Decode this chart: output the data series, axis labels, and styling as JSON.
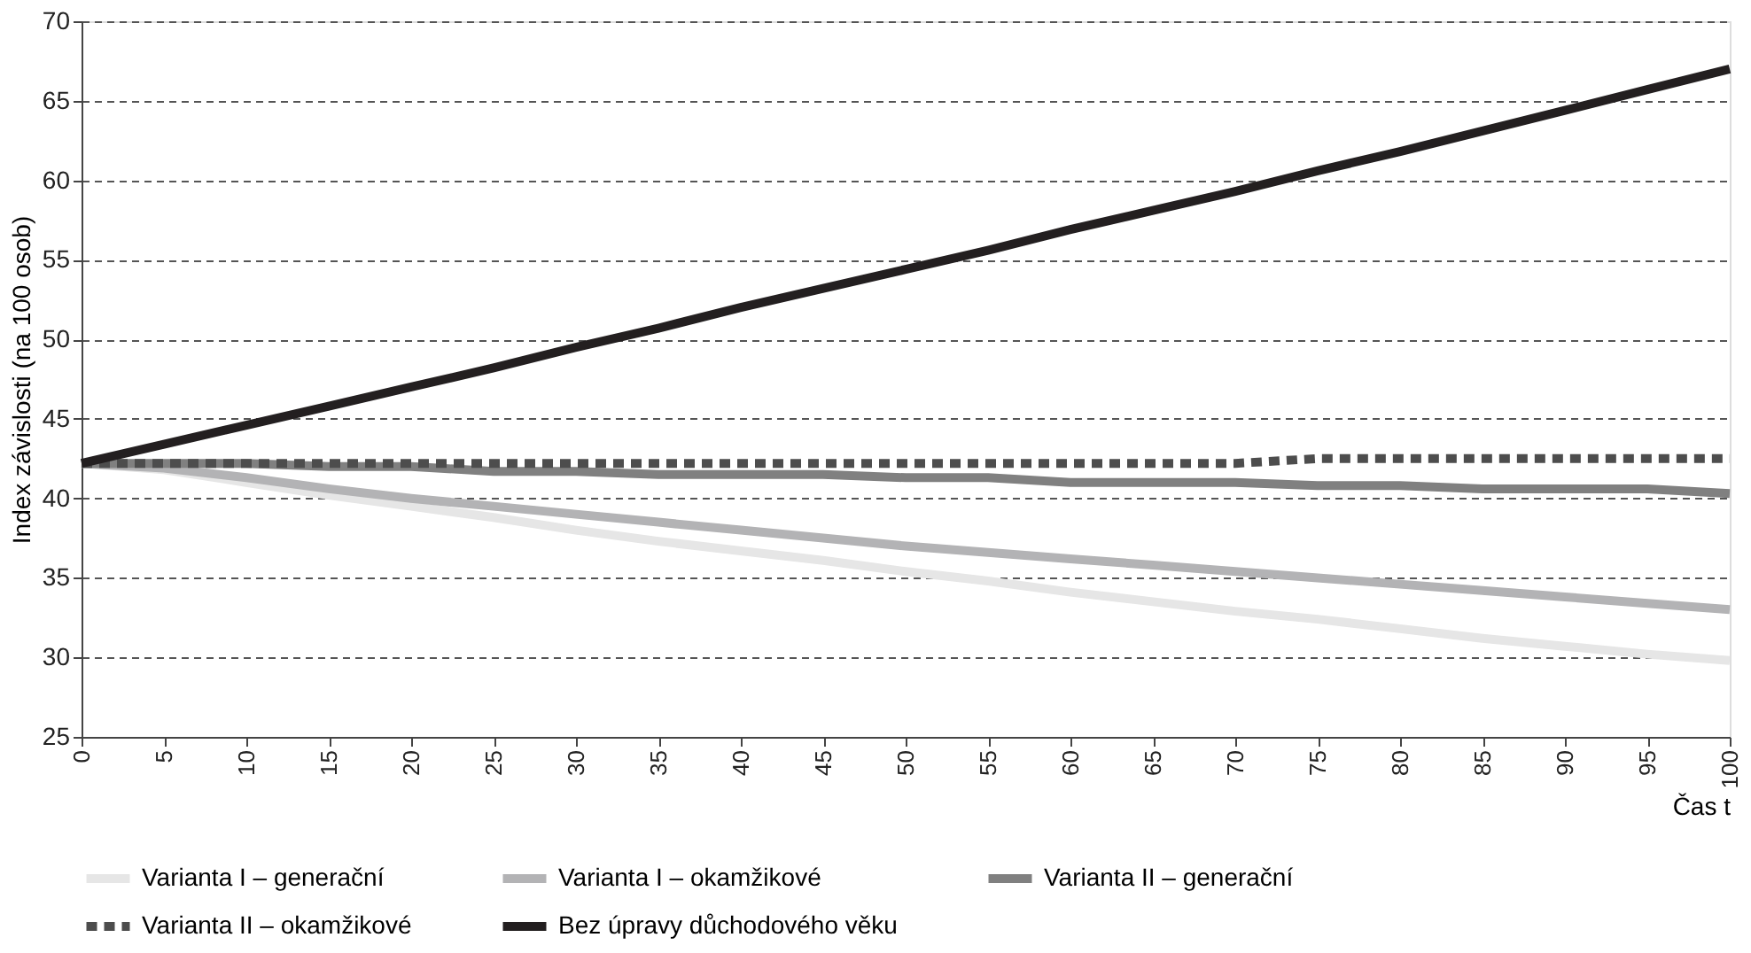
{
  "chart_data": {
    "type": "line",
    "xlabel": "Čas t",
    "ylabel": "Index závislosti (na 100 osob)",
    "x": [
      0,
      5,
      10,
      15,
      20,
      25,
      30,
      35,
      40,
      45,
      50,
      55,
      60,
      65,
      70,
      75,
      80,
      85,
      90,
      95,
      100
    ],
    "xlim": [
      0,
      100
    ],
    "xticks": [
      0,
      5,
      10,
      15,
      20,
      25,
      30,
      35,
      40,
      45,
      50,
      55,
      60,
      65,
      70,
      75,
      80,
      85,
      90,
      95,
      100
    ],
    "ylim": [
      25,
      70
    ],
    "yticks": [
      25,
      30,
      35,
      40,
      45,
      50,
      55,
      60,
      65,
      70
    ],
    "grid": "y",
    "legend": "bottom",
    "line_style": "solid",
    "series": [
      {
        "name": "Varianta I – generační",
        "color": "#e6e6e6",
        "values": [
          42.2,
          41.8,
          41.0,
          40.2,
          39.5,
          38.8,
          38.0,
          37.3,
          36.7,
          36.1,
          35.4,
          34.8,
          34.1,
          33.5,
          32.9,
          32.4,
          31.8,
          31.2,
          30.7,
          30.2,
          29.8
        ]
      },
      {
        "name": "Varianta I – okamžikové",
        "color": "#b3b3b5",
        "values": [
          42.2,
          41.9,
          41.3,
          40.6,
          40.0,
          39.5,
          39.0,
          38.5,
          38.0,
          37.5,
          37.0,
          36.6,
          36.2,
          35.8,
          35.4,
          35.0,
          34.6,
          34.2,
          33.8,
          33.4,
          33.0
        ]
      },
      {
        "name": "Varianta II – generační",
        "color": "#808080",
        "values": [
          42.2,
          42.2,
          42.2,
          42.0,
          42.0,
          41.7,
          41.7,
          41.5,
          41.5,
          41.5,
          41.3,
          41.3,
          41.0,
          41.0,
          41.0,
          40.8,
          40.8,
          40.6,
          40.6,
          40.6,
          40.3
        ]
      },
      {
        "name": "Varianta II – okamžikové",
        "color": "#4d4d4d",
        "line_style": "dashed",
        "values": [
          42.2,
          42.2,
          42.2,
          42.2,
          42.2,
          42.2,
          42.2,
          42.2,
          42.2,
          42.2,
          42.2,
          42.2,
          42.2,
          42.2,
          42.2,
          42.5,
          42.5,
          42.5,
          42.5,
          42.5,
          42.5
        ]
      },
      {
        "name": "Bez úpravy důchodového věku",
        "color": "#231f20",
        "values": [
          42.2,
          43.4,
          44.6,
          45.8,
          47.0,
          48.2,
          49.5,
          50.7,
          52.0,
          53.2,
          54.4,
          55.6,
          56.9,
          58.1,
          59.3,
          60.6,
          61.8,
          63.1,
          64.4,
          65.7,
          67.0
        ]
      }
    ]
  }
}
